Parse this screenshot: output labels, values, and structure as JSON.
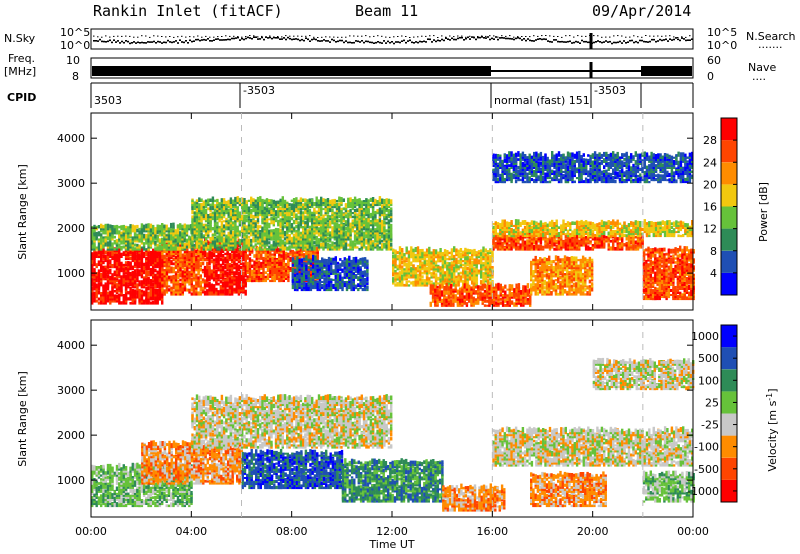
{
  "header": {
    "station": "Rankin Inlet (fitACF)",
    "beam": "Beam 11",
    "date": "09/Apr/2014"
  },
  "noise_panel": {
    "left_label": "N.Sky",
    "right_label": "N.Search",
    "left_ticks": [
      "10^5",
      "10^0"
    ],
    "right_ticks": [
      "10^5",
      "10^0"
    ],
    "right_dots": "......."
  },
  "freq_panel": {
    "left_label_line1": "Freq.",
    "left_label_line2": "[MHz]",
    "right_label": "Nave",
    "left_ticks": [
      "10",
      "8"
    ],
    "right_ticks": [
      "60",
      "0"
    ],
    "right_dots": "...."
  },
  "cpid_panel": {
    "label": "CPID",
    "entries": [
      "3503",
      "-3503",
      "normal (fast) 151",
      "-3503"
    ]
  },
  "time_axis": {
    "title": "Time UT",
    "ticks": [
      "00:00",
      "04:00",
      "08:00",
      "12:00",
      "16:00",
      "20:00",
      "00:00"
    ]
  },
  "colors": {
    "power": [
      "#0000ff",
      "#1f4fb4",
      "#2e8b57",
      "#66c23a",
      "#f2c80f",
      "#ff8c00",
      "#ff4500",
      "#ff0000"
    ],
    "velocity": [
      "#ff0000",
      "#ff4500",
      "#ff8c00",
      "#c8c8c8",
      "#66c23a",
      "#2e8b57",
      "#1f4fb4",
      "#0000ff"
    ],
    "ground_scatter": "#c8c8c8"
  },
  "chart_data": [
    {
      "type": "heatmap",
      "name": "power",
      "xlabel": "",
      "ylabel": "Slant Range [km]",
      "xlim": [
        0,
        24
      ],
      "ylim": [
        180,
        4560
      ],
      "yticks": [
        "1000",
        "2000",
        "3000",
        "4000"
      ],
      "colorbar": {
        "title": "Power [dB]",
        "ticks": [
          "4",
          "8",
          "12",
          "16",
          "20",
          "24",
          "28"
        ]
      },
      "bands": [
        {
          "t0": 0.0,
          "t1": 2.8,
          "r0": 300,
          "r1": 1500,
          "level": 7
        },
        {
          "t0": 2.8,
          "t1": 4.5,
          "r0": 500,
          "r1": 1600,
          "level": 6
        },
        {
          "t0": 4.5,
          "t1": 6.2,
          "r0": 500,
          "r1": 1700,
          "level": 7
        },
        {
          "t0": 6.2,
          "t1": 9.0,
          "r0": 800,
          "r1": 1500,
          "level": 6
        },
        {
          "t0": 0.0,
          "t1": 4.0,
          "r0": 1500,
          "r1": 2000,
          "level": 3
        },
        {
          "t0": 4.0,
          "t1": 12.0,
          "r0": 1500,
          "r1": 2600,
          "level": 3
        },
        {
          "t0": 8.0,
          "t1": 11.0,
          "r0": 600,
          "r1": 1300,
          "level": 1
        },
        {
          "t0": 12.0,
          "t1": 16.0,
          "r0": 700,
          "r1": 1500,
          "level": 4
        },
        {
          "t0": 13.5,
          "t1": 17.5,
          "r0": 250,
          "r1": 700,
          "level": 6
        },
        {
          "t0": 16.0,
          "t1": 22.0,
          "r0": 1500,
          "r1": 1800,
          "level": 6
        },
        {
          "t0": 16.0,
          "t1": 24.0,
          "r0": 1800,
          "r1": 2100,
          "level": 4
        },
        {
          "t0": 17.5,
          "t1": 20.0,
          "r0": 500,
          "r1": 1300,
          "level": 5
        },
        {
          "t0": 22.0,
          "t1": 24.0,
          "r0": 400,
          "r1": 1500,
          "level": 6
        },
        {
          "t0": 16.0,
          "t1": 24.0,
          "r0": 3000,
          "r1": 3600,
          "level": 1
        }
      ]
    },
    {
      "type": "heatmap",
      "name": "velocity",
      "xlabel": "Time UT",
      "ylabel": "Slant Range [km]",
      "xlim": [
        0,
        24
      ],
      "ylim": [
        180,
        4560
      ],
      "yticks": [
        "1000",
        "2000",
        "3000",
        "4000"
      ],
      "colorbar": {
        "title": "Velocity [m s",
        "title_superscript": "-1",
        "title_close": "]",
        "ticks": [
          "1000",
          "500",
          "100",
          "25",
          "-25",
          "-100",
          "-500",
          "-1000"
        ]
      },
      "bands": [
        {
          "t0": 0.0,
          "t1": 4.0,
          "r0": 400,
          "r1": 1300,
          "level": 4
        },
        {
          "t0": 2.0,
          "t1": 6.0,
          "r0": 900,
          "r1": 1800,
          "level": 2
        },
        {
          "t0": 6.0,
          "t1": 10.0,
          "r0": 800,
          "r1": 1600,
          "level": 6
        },
        {
          "t0": 10.0,
          "t1": 14.0,
          "r0": 500,
          "r1": 1400,
          "level": 5
        },
        {
          "t0": 4.0,
          "t1": 12.0,
          "r0": 1700,
          "r1": 2800,
          "level": 3
        },
        {
          "t0": 14.0,
          "t1": 16.5,
          "r0": 300,
          "r1": 800,
          "level": 2
        },
        {
          "t0": 17.5,
          "t1": 20.5,
          "r0": 400,
          "r1": 1100,
          "level": 2
        },
        {
          "t0": 16.0,
          "t1": 24.0,
          "r0": 1300,
          "r1": 2100,
          "level": 3
        },
        {
          "t0": 20.0,
          "t1": 24.0,
          "r0": 3000,
          "r1": 3600,
          "level": 3
        },
        {
          "t0": 22.0,
          "t1": 24.0,
          "r0": 500,
          "r1": 1100,
          "level": 4
        }
      ]
    }
  ]
}
